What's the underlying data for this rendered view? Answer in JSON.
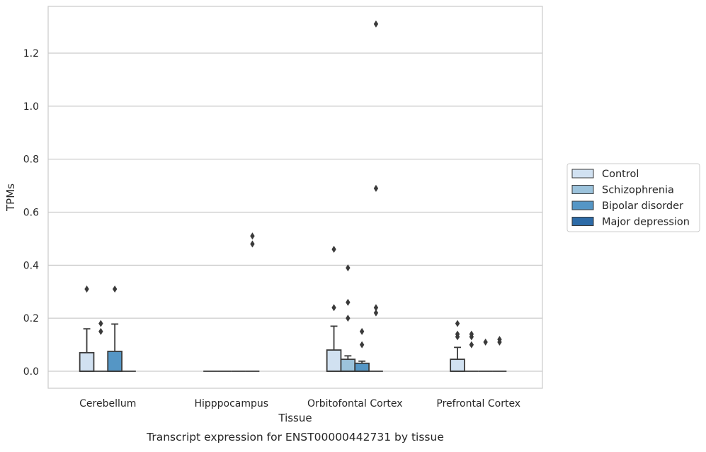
{
  "chart_data": {
    "type": "box",
    "title": "",
    "caption": "Transcript expression for ENST00000442731 by tissue",
    "xlabel": "Tissue",
    "ylabel": "TPMs",
    "ylim": [
      -0.065,
      1.38
    ],
    "yticks": [
      "0.0",
      "0.2",
      "0.4",
      "0.6",
      "0.8",
      "1.0",
      "1.2"
    ],
    "grid": "horizontal",
    "legend_placement": "right",
    "categories": [
      "Cerebellum",
      "Hipppocampus",
      "Orbitofontal Cortex",
      "Prefrontal Cortex"
    ],
    "series": [
      {
        "name": "Control",
        "color": "#d1e1f1",
        "boxes": [
          {
            "q1": 0.0,
            "median": 0.0,
            "q3": 0.07,
            "whisker_low": 0.0,
            "whisker_high": 0.16,
            "outliers": [
              0.31
            ]
          },
          {
            "q1": 0.0,
            "median": 0.0,
            "q3": 0.0,
            "whisker_low": 0.0,
            "whisker_high": 0.0,
            "outliers": []
          },
          {
            "q1": 0.0,
            "median": 0.0,
            "q3": 0.08,
            "whisker_low": 0.0,
            "whisker_high": 0.17,
            "outliers": [
              0.24,
              0.46
            ]
          },
          {
            "q1": 0.0,
            "median": 0.0,
            "q3": 0.045,
            "whisker_low": 0.0,
            "whisker_high": 0.09,
            "outliers": [
              0.13,
              0.14,
              0.18
            ]
          }
        ]
      },
      {
        "name": "Schizophrenia",
        "color": "#9cc3dc",
        "boxes": [
          {
            "q1": 0.0,
            "median": 0.0,
            "q3": 0.0,
            "whisker_low": 0.0,
            "whisker_high": 0.0,
            "outliers": [
              0.15,
              0.18
            ]
          },
          {
            "q1": 0.0,
            "median": 0.0,
            "q3": 0.0,
            "whisker_low": 0.0,
            "whisker_high": 0.0,
            "outliers": []
          },
          {
            "q1": 0.0,
            "median": 0.0,
            "q3": 0.045,
            "whisker_low": 0.0,
            "whisker_high": 0.058,
            "outliers": [
              0.2,
              0.26,
              0.39
            ]
          },
          {
            "q1": 0.0,
            "median": 0.0,
            "q3": 0.0,
            "whisker_low": 0.0,
            "whisker_high": 0.0,
            "outliers": [
              0.1,
              0.13,
              0.14
            ]
          }
        ]
      },
      {
        "name": "Bipolar disorder",
        "color": "#5596c5",
        "boxes": [
          {
            "q1": 0.0,
            "median": 0.0,
            "q3": 0.075,
            "whisker_low": 0.0,
            "whisker_high": 0.178,
            "outliers": [
              0.31
            ]
          },
          {
            "q1": 0.0,
            "median": 0.0,
            "q3": 0.0,
            "whisker_low": 0.0,
            "whisker_high": 0.0,
            "outliers": []
          },
          {
            "q1": 0.0,
            "median": 0.0,
            "q3": 0.03,
            "whisker_low": 0.0,
            "whisker_high": 0.038,
            "outliers": [
              0.1,
              0.15
            ]
          },
          {
            "q1": 0.0,
            "median": 0.0,
            "q3": 0.0,
            "whisker_low": 0.0,
            "whisker_high": 0.0,
            "outliers": [
              0.11
            ]
          }
        ]
      },
      {
        "name": "Major depression",
        "color": "#2d6ba7",
        "boxes": [
          {
            "q1": 0.0,
            "median": 0.0,
            "q3": 0.0,
            "whisker_low": 0.0,
            "whisker_high": 0.0,
            "outliers": []
          },
          {
            "q1": 0.0,
            "median": 0.0,
            "q3": 0.0,
            "whisker_low": 0.0,
            "whisker_high": 0.0,
            "outliers": [
              0.48,
              0.51
            ]
          },
          {
            "q1": 0.0,
            "median": 0.0,
            "q3": 0.0,
            "whisker_low": 0.0,
            "whisker_high": 0.0,
            "outliers": [
              0.22,
              0.24,
              0.69,
              1.31
            ]
          },
          {
            "q1": 0.0,
            "median": 0.0,
            "q3": 0.0,
            "whisker_low": 0.0,
            "whisker_high": 0.0,
            "outliers": [
              0.11,
              0.12
            ]
          }
        ]
      }
    ]
  },
  "colors": {
    "grid": "#cccccc",
    "frame": "#cccccc",
    "line": "#3a3a3a",
    "text": "#262626"
  }
}
